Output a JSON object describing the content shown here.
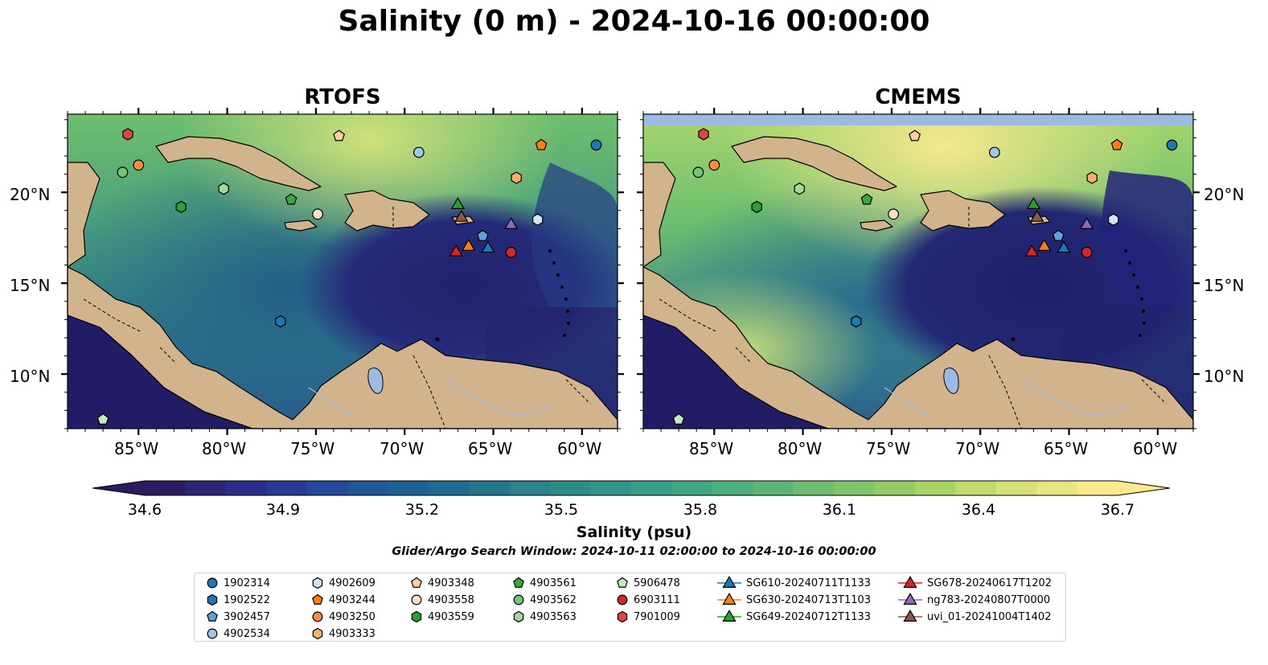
{
  "title": "Salinity (0 m) - 2024-10-16 00:00:00",
  "panels": [
    {
      "title": "RTOFS"
    },
    {
      "title": "CMEMS"
    }
  ],
  "axes": {
    "lat_labels": [
      "20°N",
      "15°N",
      "10°N"
    ],
    "lon_labels": [
      "85°W",
      "80°W",
      "75°W",
      "70°W",
      "65°W",
      "60°W"
    ]
  },
  "colorbar": {
    "label": "Salinity (psu)",
    "ticks": [
      "34.6",
      "34.9",
      "35.2",
      "35.5",
      "35.8",
      "36.1",
      "36.4",
      "36.7"
    ],
    "min": 34.6,
    "max": 36.7,
    "extend": "both",
    "colormap": "haline-like (dark navy → teal → green → pale yellow)"
  },
  "search_window": "Glider/Argo Search Window: 2024-10-11 02:00:00 to 2024-10-16 00:00:00",
  "colors": {
    "land": "#d2b48c",
    "lake": "#9bbbe3",
    "border_land": "#000000"
  },
  "legend": {
    "columns": [
      [
        {
          "label": "1902314",
          "marker": "circle",
          "color": "#1f77b4"
        },
        {
          "label": "1902522",
          "marker": "hexagon",
          "color": "#1f77b4"
        },
        {
          "label": "3902457",
          "marker": "pentagon",
          "color": "#5fa1d9"
        },
        {
          "label": "4902534",
          "marker": "circle",
          "color": "#9ec7ea"
        }
      ],
      [
        {
          "label": "4902609",
          "marker": "hexagon",
          "color": "#d3e5f5"
        },
        {
          "label": "4903244",
          "marker": "pentagon",
          "color": "#ff7f0e"
        },
        {
          "label": "4903250",
          "marker": "circle",
          "color": "#fd8d3c"
        },
        {
          "label": "4903333",
          "marker": "hexagon",
          "color": "#fdae6b"
        }
      ],
      [
        {
          "label": "4903348",
          "marker": "pentagon",
          "color": "#fdd0a2"
        },
        {
          "label": "4903558",
          "marker": "circle",
          "color": "#fde0cc"
        },
        {
          "label": "4903559",
          "marker": "hexagon",
          "color": "#2ca02c"
        }
      ],
      [
        {
          "label": "4903561",
          "marker": "pentagon",
          "color": "#3aa83a"
        },
        {
          "label": "4903562",
          "marker": "circle",
          "color": "#74c476"
        },
        {
          "label": "4903563",
          "marker": "hexagon",
          "color": "#a1d99b"
        }
      ],
      [
        {
          "label": "5906478",
          "marker": "pentagon",
          "color": "#c7e9c0"
        },
        {
          "label": "6903111",
          "marker": "circle",
          "color": "#d62728"
        },
        {
          "label": "7901009",
          "marker": "hexagon",
          "color": "#e04444"
        }
      ],
      [
        {
          "label": "SG610-20240711T1133",
          "marker": "triangle",
          "color": "#1f77b4"
        },
        {
          "label": "SG630-20240713T1103",
          "marker": "triangle",
          "color": "#ff7f0e"
        },
        {
          "label": "SG649-20240712T1133",
          "marker": "triangle",
          "color": "#2ca02c"
        }
      ],
      [
        {
          "label": "SG678-20240617T1202",
          "marker": "triangle",
          "color": "#d62728"
        },
        {
          "label": "ng783-20240807T0000",
          "marker": "triangle",
          "color": "#9467bd"
        },
        {
          "label": "uvi_01-20241004T1402",
          "marker": "triangle",
          "color": "#8c564b"
        }
      ]
    ]
  },
  "platforms": [
    {
      "id": "1902314",
      "lon": -59.2,
      "lat": 22.6
    },
    {
      "id": "4902534",
      "lon": -69.2,
      "lat": 22.2
    },
    {
      "id": "4903348",
      "lon": -73.7,
      "lat": 23.1
    },
    {
      "id": "7901009",
      "lon": -85.6,
      "lat": 23.2
    },
    {
      "id": "4903562",
      "lon": -85.9,
      "lat": 21.1
    },
    {
      "id": "4903250",
      "lon": -85.0,
      "lat": 21.5
    },
    {
      "id": "4903563",
      "lon": -80.2,
      "lat": 20.2
    },
    {
      "id": "4903561",
      "lon": -76.4,
      "lat": 19.6
    },
    {
      "id": "4903559",
      "lon": -82.6,
      "lat": 19.2
    },
    {
      "id": "4903558",
      "lon": -74.9,
      "lat": 18.8
    },
    {
      "id": "4903244",
      "lon": -62.3,
      "lat": 22.6
    },
    {
      "id": "4903333",
      "lon": -63.7,
      "lat": 20.8
    },
    {
      "id": "4902609",
      "lon": -62.5,
      "lat": 18.5
    },
    {
      "id": "3902457",
      "lon": -65.6,
      "lat": 17.6
    },
    {
      "id": "6903111",
      "lon": -64.0,
      "lat": 16.7
    },
    {
      "id": "1902522",
      "lon": -77.0,
      "lat": 12.9
    },
    {
      "id": "5906478",
      "lon": -87.0,
      "lat": 7.5
    },
    {
      "id": "SG649-20240712T1133",
      "lon": -67.0,
      "lat": 19.3
    },
    {
      "id": "uvi_01-20241004T1402",
      "lon": -66.8,
      "lat": 18.6
    },
    {
      "id": "ng783-20240807T0000",
      "lon": -64.0,
      "lat": 18.2
    },
    {
      "id": "SG678-20240617T1202",
      "lon": -67.1,
      "lat": 16.7
    },
    {
      "id": "SG630-20240713T1103",
      "lon": -66.4,
      "lat": 17.0
    },
    {
      "id": "SG610-20240711T1133",
      "lon": -65.3,
      "lat": 16.9
    }
  ]
}
